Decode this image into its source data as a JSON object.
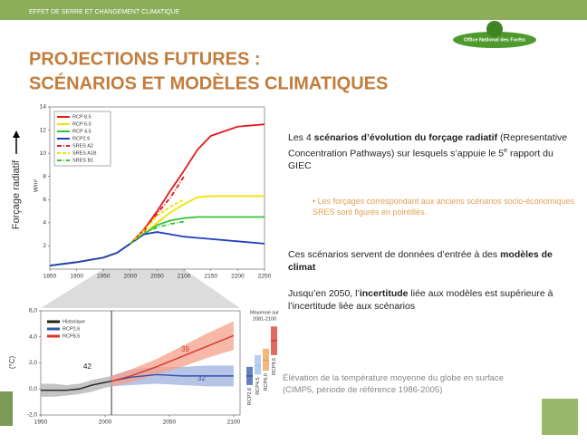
{
  "header": "EFFET DE SERRE ET CHANGEMENT CLIMATIQUE",
  "logo": "Office National des Forêts",
  "title": [
    "PROJECTIONS FUTURES :",
    "SCÉNARIOS ET MODÈLES CLIMATIQUES"
  ],
  "text": {
    "p1": [
      "Les 4 ",
      "scénarios d’évolution du forçage radiatif",
      " (Representative Concentration Pathways) sur lesquels s’appuie le 5",
      "e",
      " rapport du GIEC"
    ],
    "bullet": "Les forçages correspondant aux anciens scénarios socio-économiques SRES sont figurés en pointillés.",
    "p2": [
      "Ces scénarios servent de  données d’entrée à des ",
      "modèles de climat"
    ],
    "p3": [
      "Jusqu’en 2050, l’",
      "incertitude",
      " liée aux modèles est supérieure à l’incertitude liée aux scénarios"
    ]
  },
  "caption": [
    "Élévation de la température moyenne du globe en surface",
    "(CIMP5, période de référence 1986-2005)"
  ],
  "chart_data": [
    {
      "type": "line",
      "ylabel": "Forçage radiatif",
      "yunit": "W/m²",
      "x": [
        1850,
        1900,
        1950,
        1975,
        2000,
        2025,
        2050,
        2075,
        2100,
        2125,
        2150,
        2200,
        2250
      ],
      "xlim": [
        1850,
        2250
      ],
      "xticks": [
        1850,
        1900,
        1950,
        2000,
        2050,
        2100,
        2150,
        2200,
        2250
      ],
      "ylim": [
        0,
        14
      ],
      "yticks": [
        2,
        4,
        6,
        8,
        10,
        12,
        14
      ],
      "series": [
        {
          "name": "RCP 8.5",
          "color": "#e31a1c",
          "values": [
            0.3,
            0.6,
            1.0,
            1.4,
            2.2,
            3.4,
            5.0,
            6.8,
            8.5,
            10.3,
            11.5,
            12.3,
            12.5
          ]
        },
        {
          "name": "RCP 6.0",
          "color": "#f2e200",
          "values": [
            0.3,
            0.6,
            1.0,
            1.4,
            2.2,
            3.0,
            4.0,
            4.9,
            5.6,
            6.2,
            6.3,
            6.3,
            6.3
          ]
        },
        {
          "name": "RCP 4.5",
          "color": "#33c233",
          "values": [
            0.3,
            0.6,
            1.0,
            1.4,
            2.2,
            3.0,
            3.8,
            4.2,
            4.4,
            4.5,
            4.5,
            4.5,
            4.5
          ]
        },
        {
          "name": "RCP2.6",
          "color": "#1f3fbf",
          "values": [
            0.3,
            0.6,
            1.0,
            1.4,
            2.2,
            3.0,
            3.2,
            3.0,
            2.8,
            2.7,
            2.6,
            2.4,
            2.2
          ]
        },
        {
          "name": "SRES A2",
          "color": "#e31a1c",
          "dash": "dashdot",
          "values": [
            null,
            null,
            null,
            null,
            2.2,
            3.2,
            4.8,
            6.2,
            8.0,
            null,
            null,
            null,
            null
          ]
        },
        {
          "name": "SRES A1B",
          "color": "#f2e200",
          "dash": "dashed",
          "values": [
            null,
            null,
            null,
            null,
            2.2,
            3.3,
            4.6,
            5.4,
            6.0,
            null,
            null,
            null,
            null
          ]
        },
        {
          "name": "SRES B1",
          "color": "#33c233",
          "dash": "dashdot",
          "values": [
            null,
            null,
            null,
            null,
            2.2,
            3.1,
            3.6,
            3.9,
            4.1,
            null,
            null,
            null,
            null
          ]
        }
      ]
    },
    {
      "type": "line",
      "ylabel": "(°C)",
      "x": [
        1950,
        1960,
        1970,
        1980,
        1990,
        2000,
        2005,
        2020,
        2040,
        2060,
        2080,
        2100
      ],
      "xlim": [
        1950,
        2105
      ],
      "xticks": [
        1950,
        2000,
        2050,
        2100
      ],
      "ylim": [
        -2,
        6
      ],
      "yticks": [
        {
          "value": -2,
          "label": "-2,0"
        },
        {
          "value": 0,
          "label": "0,0"
        },
        {
          "value": 2,
          "label": "2,0"
        },
        {
          "value": 4,
          "label": "4,0"
        },
        {
          "value": 6,
          "label": "6,0"
        }
      ],
      "vline": 2005,
      "series": [
        {
          "name": "Historique",
          "color": "#222222",
          "band": "#b0b0b0",
          "values": [
            -0.1,
            -0.1,
            -0.1,
            0.0,
            0.3,
            0.5,
            0.6,
            null,
            null,
            null,
            null,
            null
          ],
          "lower": [
            -0.6,
            -0.6,
            -0.5,
            -0.4,
            -0.2,
            0.1,
            0.2,
            null,
            null,
            null,
            null,
            null
          ],
          "upper": [
            0.4,
            0.4,
            0.3,
            0.4,
            0.7,
            0.9,
            1.0,
            null,
            null,
            null,
            null,
            null
          ]
        },
        {
          "name": "RCP2,6",
          "color": "#3355aa",
          "band": "#9fb0dd",
          "values": [
            null,
            null,
            null,
            null,
            null,
            null,
            0.6,
            0.9,
            1.1,
            1.0,
            1.0,
            1.0
          ],
          "lower": [
            null,
            null,
            null,
            null,
            null,
            null,
            0.2,
            0.3,
            0.4,
            0.3,
            0.2,
            0.2
          ],
          "upper": [
            null,
            null,
            null,
            null,
            null,
            null,
            1.0,
            1.5,
            1.7,
            1.7,
            1.8,
            1.8
          ]
        },
        {
          "name": "RCP8,5",
          "color": "#d9362b",
          "band": "#f4a08a",
          "values": [
            null,
            null,
            null,
            null,
            null,
            null,
            0.6,
            1.0,
            1.7,
            2.5,
            3.3,
            4.1
          ],
          "lower": [
            null,
            null,
            null,
            null,
            null,
            null,
            0.2,
            0.5,
            1.1,
            1.7,
            2.4,
            3.0
          ],
          "upper": [
            null,
            null,
            null,
            null,
            null,
            null,
            1.0,
            1.5,
            2.3,
            3.3,
            4.3,
            5.2
          ]
        }
      ],
      "annotations": [
        {
          "text": "42",
          "color": "#222222"
        },
        {
          "text": "39",
          "color": "#d9362b"
        },
        {
          "text": "32",
          "color": "#3355aa"
        }
      ],
      "summary": {
        "title": [
          "Moyenne sur",
          "2081-2100"
        ],
        "categories": [
          "RCP2,6",
          "RCP4,5",
          "RCP6,0",
          "RCP8,5"
        ],
        "colors": [
          "#3355aa",
          "#9fc0ee",
          "#f0a050",
          "#d9362b"
        ],
        "low": [
          0.3,
          1.1,
          1.4,
          2.6
        ],
        "mean": [
          1.0,
          1.8,
          2.2,
          3.7
        ],
        "high": [
          1.7,
          2.6,
          3.1,
          4.8
        ]
      }
    }
  ]
}
